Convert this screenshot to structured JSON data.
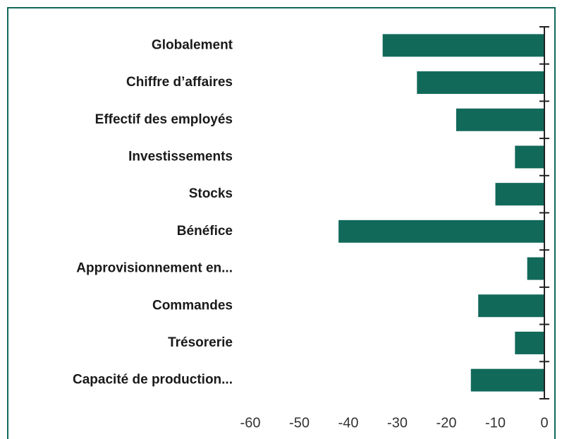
{
  "chart_data": {
    "type": "bar",
    "orientation": "horizontal",
    "categories": [
      "Globalement",
      "Chiffre d’affaires",
      "Effectif des employés",
      "Investissements",
      "Stocks",
      "Bénéfice",
      "Approvisionnement en...",
      "Commandes",
      "Trésorerie",
      "Capacité de production..."
    ],
    "values": [
      -33,
      -26,
      -18,
      -6,
      -10,
      -42,
      -3.5,
      -13.5,
      -6,
      -15
    ],
    "color": "#11695a",
    "xlim": [
      -60,
      0
    ],
    "xticks": [
      -60,
      -50,
      -40,
      -30,
      -20,
      -10,
      0
    ],
    "grid": false
  }
}
